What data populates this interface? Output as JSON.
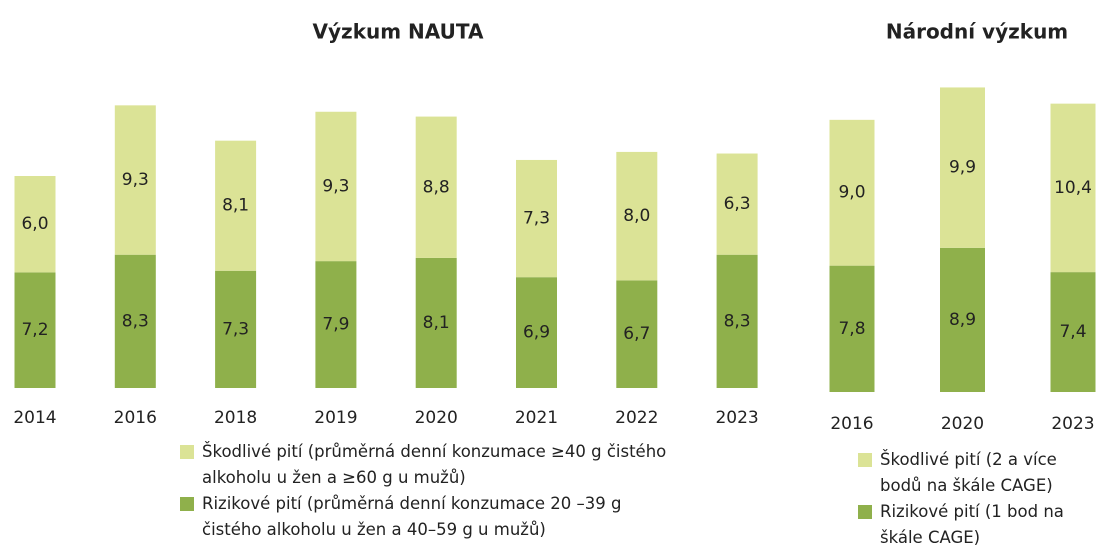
{
  "chart_data": [
    {
      "type": "stacked_bar",
      "title": "Výzkum NAUTA",
      "categories": [
        "2014",
        "2016",
        "2018",
        "2019",
        "2020",
        "2021",
        "2022",
        "2023"
      ],
      "series": [
        {
          "name": "Škodlivé pití (průměrná denní konzumace ≥40 g čistého alkoholu u žen a ≥60 g u mužů)",
          "color": "#dbe396",
          "values": [
            6.0,
            9.3,
            8.1,
            9.3,
            8.8,
            7.3,
            8.0,
            6.3
          ],
          "value_labels": [
            "6,0",
            "9,3",
            "8,1",
            "9,3",
            "8,8",
            "7,3",
            "8,0",
            "6,3"
          ]
        },
        {
          "name": "Rizikové pití (průměrná denní konzumace 20 –39 g čistého alkoholu u žen a 40–59 g u mužů)",
          "color": "#8fb04b",
          "values": [
            7.2,
            8.3,
            7.3,
            7.9,
            8.1,
            6.9,
            6.7,
            8.3
          ],
          "value_labels": [
            "7,2",
            "8,3",
            "7,3",
            "7,9",
            "8,1",
            "6,9",
            "6,7",
            "8,3"
          ]
        }
      ]
    },
    {
      "type": "stacked_bar",
      "title": "Národní výzkum",
      "categories": [
        "2016",
        "2020",
        "2023"
      ],
      "series": [
        {
          "name": "Škodlivé pití (2 a více bodů na škále CAGE)",
          "color": "#dbe396",
          "values": [
            9.0,
            9.9,
            10.4
          ],
          "value_labels": [
            "9,0",
            "9,9",
            "10,4"
          ]
        },
        {
          "name": "Rizikové pití (1 bod na škále CAGE)",
          "color": "#8fb04b",
          "values": [
            7.8,
            8.9,
            7.4
          ],
          "value_labels": [
            "7,8",
            "8,9",
            "7,4"
          ]
        }
      ]
    }
  ]
}
